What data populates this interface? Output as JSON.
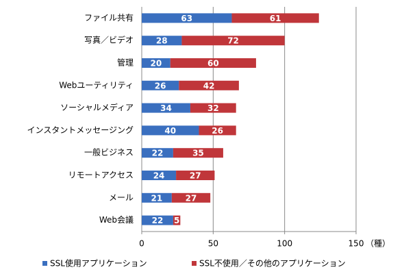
{
  "chart_data": {
    "type": "stacked-bar-horizontal",
    "categories": [
      "ファイル共有",
      "写真／ビデオ",
      "管理",
      "Webユーティリティ",
      "ソーシャルメディア",
      "インスタントメッセージング",
      "一般ビジネス",
      "リモートアクセス",
      "メール",
      "Web会議"
    ],
    "series": [
      {
        "name": "SSL使用アプリケーション",
        "color": "#3a6fbf",
        "values": [
          63,
          28,
          20,
          26,
          34,
          40,
          22,
          24,
          21,
          22
        ]
      },
      {
        "name": "SSL不使用／その他のアプリケーション",
        "color": "#c0363a",
        "values": [
          61,
          72,
          60,
          42,
          32,
          26,
          35,
          27,
          27,
          5
        ]
      }
    ],
    "xlim": [
      0,
      150
    ],
    "xticks": [
      0,
      50,
      100,
      150
    ],
    "x_unit": "（種）",
    "grid": true,
    "legend": "bottom"
  }
}
